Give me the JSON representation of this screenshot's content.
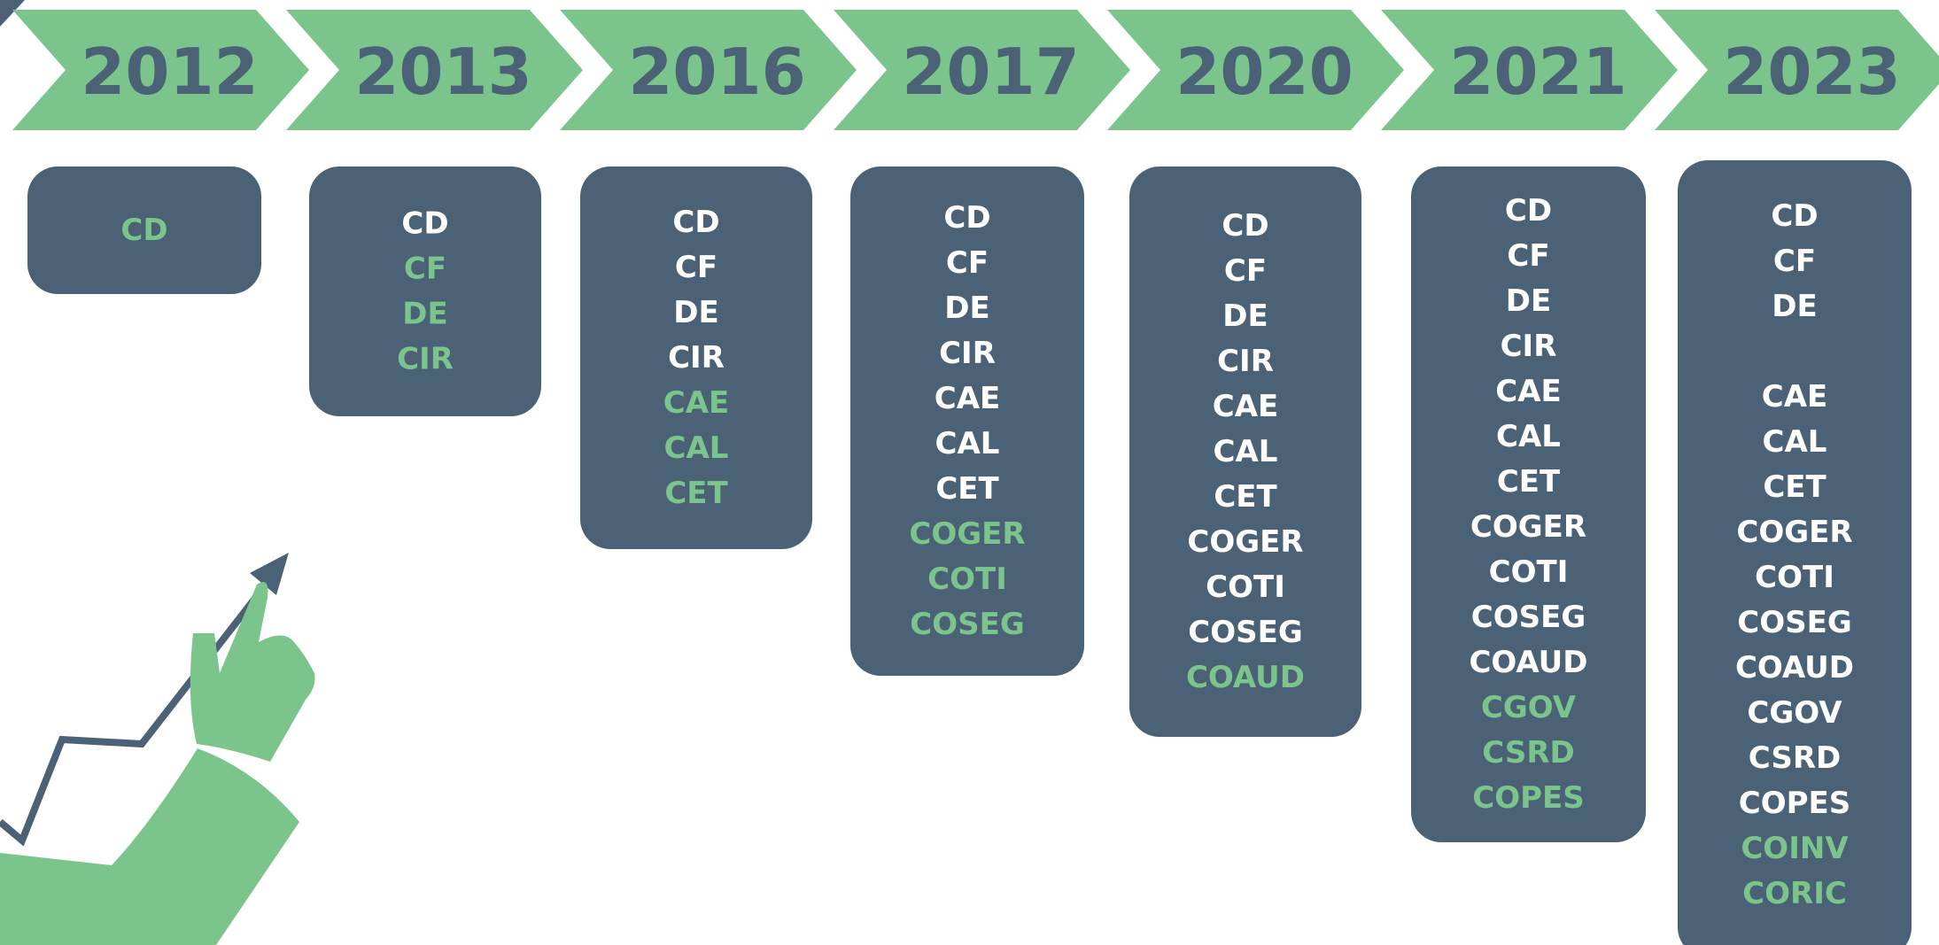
{
  "colors": {
    "chevron": "#7bc58d",
    "box": "#4a6176",
    "item": "#ffffff",
    "new_item": "#7bc58d"
  },
  "columns": [
    {
      "year": "2012",
      "items": [],
      "new_items": [
        "CD"
      ]
    },
    {
      "year": "2013",
      "items": [
        "CD"
      ],
      "new_items": [
        "CF",
        "DE",
        "CIR"
      ]
    },
    {
      "year": "2016",
      "items": [
        "CD",
        "CF",
        "DE",
        "CIR"
      ],
      "new_items": [
        "CAE",
        "CAL",
        "CET"
      ]
    },
    {
      "year": "2017",
      "items": [
        "CD",
        "CF",
        "DE",
        "CIR",
        "CAE",
        "CAL",
        "CET"
      ],
      "new_items": [
        "COGER",
        "COTI",
        "COSEG"
      ]
    },
    {
      "year": "2020",
      "items": [
        "CD",
        "CF",
        "DE",
        "CIR",
        "CAE",
        "CAL",
        "CET",
        "COGER",
        "COTI",
        "COSEG"
      ],
      "new_items": [
        "COAUD"
      ]
    },
    {
      "year": "2021",
      "items": [
        "CD",
        "CF",
        "DE",
        "CIR",
        "CAE",
        "CAL",
        "CET",
        "COGER",
        "COTI",
        "COSEG",
        "COAUD"
      ],
      "new_items": [
        "CGOV",
        "CSRD",
        "COPES"
      ]
    },
    {
      "year": "2023",
      "items": [
        "CD",
        "CF",
        "DE",
        "CAE",
        "CAL",
        "CET",
        "COGER",
        "COTI",
        "COSEG",
        "COAUD",
        "CGOV",
        "CSRD",
        "COPES"
      ],
      "new_items": [
        "COINV",
        "CORIC"
      ]
    }
  ]
}
